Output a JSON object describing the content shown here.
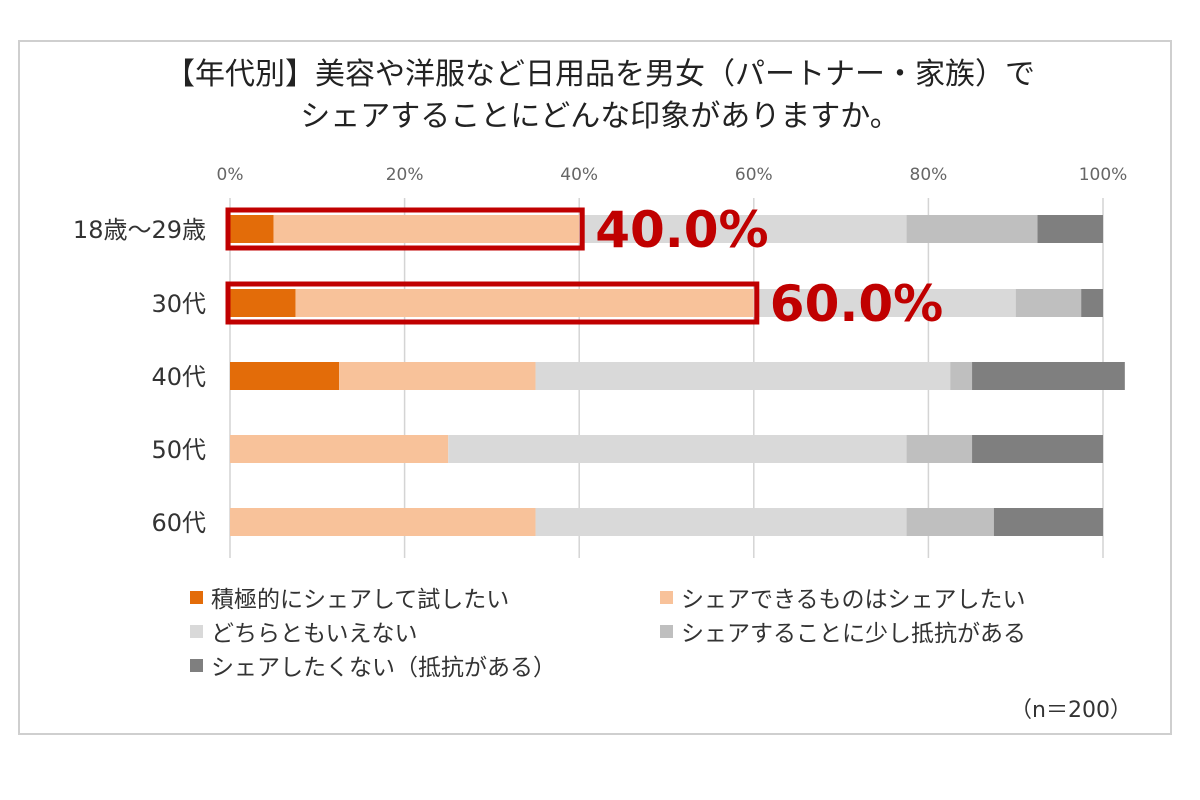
{
  "chart_data": {
    "type": "bar",
    "orientation": "horizontal",
    "stacked": true,
    "title": [
      "【年代別】美容や洋服など日用品を男女（パートナー・家族）で",
      "シェアすることにどんな印象がありますか。"
    ],
    "categories": [
      "18歳～29歳",
      "30代",
      "40代",
      "50代",
      "60代"
    ],
    "xlim": [
      0,
      100
    ],
    "xticks": [
      "0%",
      "20%",
      "40%",
      "60%",
      "80%",
      "100%"
    ],
    "grid": true,
    "series": [
      {
        "name": "積極的にシェアして試したい",
        "color": "#e36c09",
        "values": [
          5,
          7.5,
          12.5,
          0,
          0
        ]
      },
      {
        "name": "シェアできるものはシェアしたい",
        "color": "#f8c29a",
        "values": [
          35,
          52.5,
          22.5,
          25,
          35
        ]
      },
      {
        "name": "どちらともいえない",
        "color": "#d9d9d9",
        "values": [
          37.5,
          30,
          47.5,
          52.5,
          42.5
        ]
      },
      {
        "name": "シェアすることに少し抵抗がある",
        "color": "#bfbfbf",
        "values": [
          15,
          7.5,
          2.5,
          7.5,
          10
        ]
      },
      {
        "name": "シェアしたくない（抵抗がある）",
        "color": "#7f7f7f",
        "values": [
          7.5,
          2.5,
          17.5,
          15,
          12.5
        ]
      }
    ],
    "annotations": [
      {
        "category": "18歳～29歳",
        "value": 40,
        "label": "40.0%"
      },
      {
        "category": "30代",
        "value": 60,
        "label": "60.0%"
      }
    ],
    "legend_position": "bottom",
    "note": "（n＝200）"
  }
}
